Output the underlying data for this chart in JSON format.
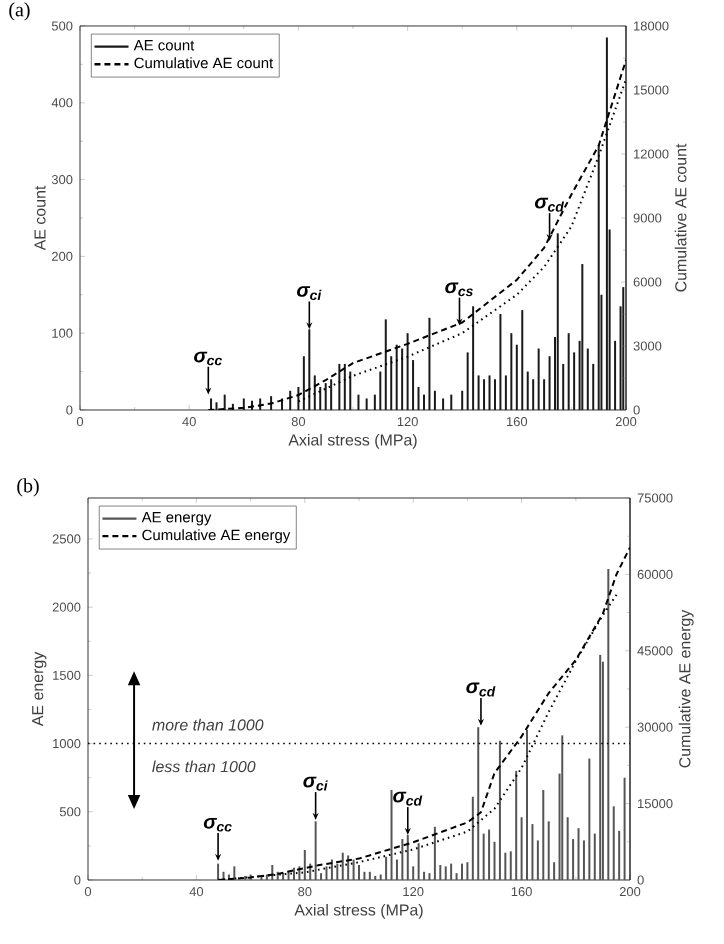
{
  "chart_data": [
    {
      "type": "bar",
      "xlabel": "Axial stress (MPa)",
      "ylabel": "AE count",
      "y2label": "Cumulative AE count",
      "legend": "top left",
      "xlim": [
        0,
        200
      ],
      "xticks": [
        0,
        40,
        80,
        120,
        160,
        200
      ],
      "ylim": [
        0,
        500
      ],
      "yticks": [
        0,
        100,
        200,
        300,
        400,
        500
      ],
      "y2lim": [
        0,
        18000
      ],
      "y2ticks": [
        0,
        3000,
        6000,
        9000,
        12000,
        15000,
        18000
      ],
      "series": [
        {
          "name": "AE count",
          "type": "bar",
          "color": "#1a1a1a",
          "x": [
            48,
            50,
            53,
            56,
            60,
            63,
            66,
            70,
            74,
            77,
            80,
            82,
            84,
            86,
            88,
            90,
            92,
            95,
            97,
            99,
            102,
            105,
            108,
            110,
            112,
            114,
            116,
            118,
            120,
            122,
            124,
            126,
            128,
            130,
            133,
            136,
            140,
            142,
            144,
            146,
            148,
            150,
            152,
            154,
            156,
            158,
            160,
            162,
            164,
            166,
            168,
            170,
            172,
            174,
            175,
            177,
            179,
            181,
            183,
            184,
            186,
            188,
            190,
            191,
            193,
            194,
            196,
            198,
            199
          ],
          "values": [
            15,
            10,
            20,
            8,
            15,
            12,
            15,
            18,
            15,
            25,
            30,
            70,
            105,
            45,
            30,
            35,
            40,
            60,
            60,
            50,
            20,
            15,
            20,
            50,
            118,
            70,
            85,
            80,
            100,
            65,
            30,
            20,
            120,
            25,
            15,
            20,
            25,
            75,
            135,
            45,
            40,
            45,
            40,
            125,
            45,
            100,
            85,
            130,
            50,
            40,
            80,
            40,
            70,
            95,
            230,
            60,
            100,
            75,
            90,
            190,
            80,
            60,
            345,
            150,
            485,
            235,
            90,
            135,
            160
          ]
        },
        {
          "name": "Cumulative AE count",
          "type": "line",
          "axis": "y2",
          "line_style": "dashed",
          "color": "#000000",
          "x": [
            47,
            60,
            70,
            80,
            90,
            100,
            120,
            140,
            160,
            170,
            180,
            190,
            200
          ],
          "values": [
            0,
            100,
            300,
            700,
            1400,
            2200,
            3100,
            4100,
            6100,
            7600,
            10100,
            12400,
            16400
          ]
        },
        {
          "type": "line",
          "axis": "y2",
          "line_style": "dotted",
          "color": "#000000",
          "x": [
            80,
            100,
            120,
            140,
            160,
            170,
            180,
            190,
            200
          ],
          "values": [
            400,
            1600,
            2500,
            3600,
            5400,
            6700,
            8600,
            11900,
            15500
          ]
        }
      ],
      "annotations": [
        "(a)",
        {
          "text": "σ$_{cc}$",
          "x": 47,
          "y": 20
        },
        {
          "text": "σ$_{ci}$",
          "x": 84,
          "y": 105
        },
        {
          "text": "σ$_{cs}$",
          "x": 139,
          "y": 110
        },
        {
          "text": "σ$_{cd}$",
          "x": 172,
          "y": 220
        }
      ]
    },
    {
      "type": "bar",
      "xlabel": "Axial stress (MPa)",
      "ylabel": "AE energy",
      "y2label": "Cumulative AE energy",
      "legend": "top left",
      "xlim": [
        0,
        200
      ],
      "xticks": [
        0,
        40,
        80,
        120,
        160,
        200
      ],
      "ylim": [
        0,
        2800
      ],
      "yticks": [
        0,
        500,
        1000,
        1500,
        2000,
        2500
      ],
      "y2lim": [
        0,
        75000
      ],
      "y2ticks": [
        0,
        15000,
        30000,
        45000,
        60000,
        75000
      ],
      "series": [
        {
          "name": "AE energy",
          "type": "bar",
          "color": "#555555",
          "x": [
            48,
            50,
            52,
            54,
            56,
            58,
            60,
            62,
            64,
            66,
            68,
            70,
            72,
            74,
            76,
            78,
            80,
            82,
            84,
            86,
            88,
            90,
            92,
            94,
            96,
            98,
            100,
            102,
            104,
            106,
            108,
            110,
            112,
            114,
            116,
            118,
            120,
            122,
            124,
            126,
            128,
            130,
            132,
            134,
            136,
            138,
            140,
            142,
            144,
            146,
            148,
            150,
            152,
            154,
            156,
            158,
            160,
            162,
            164,
            166,
            168,
            170,
            172,
            174,
            175,
            177,
            179,
            181,
            183,
            185,
            187,
            189,
            190,
            192,
            194,
            196,
            198
          ],
          "values": [
            120,
            60,
            40,
            100,
            null,
            30,
            40,
            null,
            30,
            40,
            110,
            60,
            50,
            60,
            90,
            100,
            220,
            120,
            430,
            50,
            100,
            150,
            120,
            200,
            180,
            150,
            110,
            60,
            60,
            30,
            40,
            170,
            660,
            150,
            300,
            330,
            100,
            270,
            60,
            50,
            390,
            110,
            100,
            120,
            50,
            120,
            130,
            610,
            1120,
            340,
            370,
            280,
            1020,
            200,
            210,
            800,
            460,
            1100,
            410,
            290,
            660,
            430,
            130,
            780,
            1060,
            460,
            300,
            380,
            290,
            890,
            340,
            1650,
            1600,
            2280,
            540,
            360,
            750
          ]
        },
        {
          "name": "Cumulative AE energy",
          "type": "line",
          "axis": "y2",
          "line_style": "dashed",
          "color": "#000000",
          "x": [
            48,
            60,
            70,
            85,
            100,
            120,
            140,
            145,
            150,
            160,
            170,
            180,
            190,
            195,
            200
          ],
          "values": [
            0,
            500,
            1200,
            2900,
            4200,
            7400,
            11300,
            13300,
            21000,
            28200,
            36700,
            43200,
            52300,
            60000,
            65300
          ]
        },
        {
          "type": "line",
          "axis": "y2",
          "line_style": "dotted",
          "color": "#000000",
          "x": [
            48,
            80,
            100,
            120,
            140,
            150,
            160,
            170,
            180,
            190,
            195
          ],
          "values": [
            0,
            1500,
            3500,
            6000,
            9500,
            14000,
            22000,
            33000,
            43000,
            52000,
            56000
          ]
        }
      ],
      "ref_lines": [
        {
          "axis": "y",
          "value": 1000,
          "line_style": "dotted",
          "color": "#000000"
        }
      ],
      "annotations": [
        "(b)",
        "more than 1000",
        "less than 1000",
        {
          "text": "σ$_{cc}$",
          "x": 48,
          "y": 140
        },
        {
          "text": "σ$_{ci}$",
          "x": 84,
          "y": 440
        },
        {
          "text": "σ$_{cd}$",
          "x": 118,
          "y": 330
        },
        {
          "text": "σ$_{cd}$",
          "x": 145,
          "y": 1130
        }
      ]
    }
  ]
}
